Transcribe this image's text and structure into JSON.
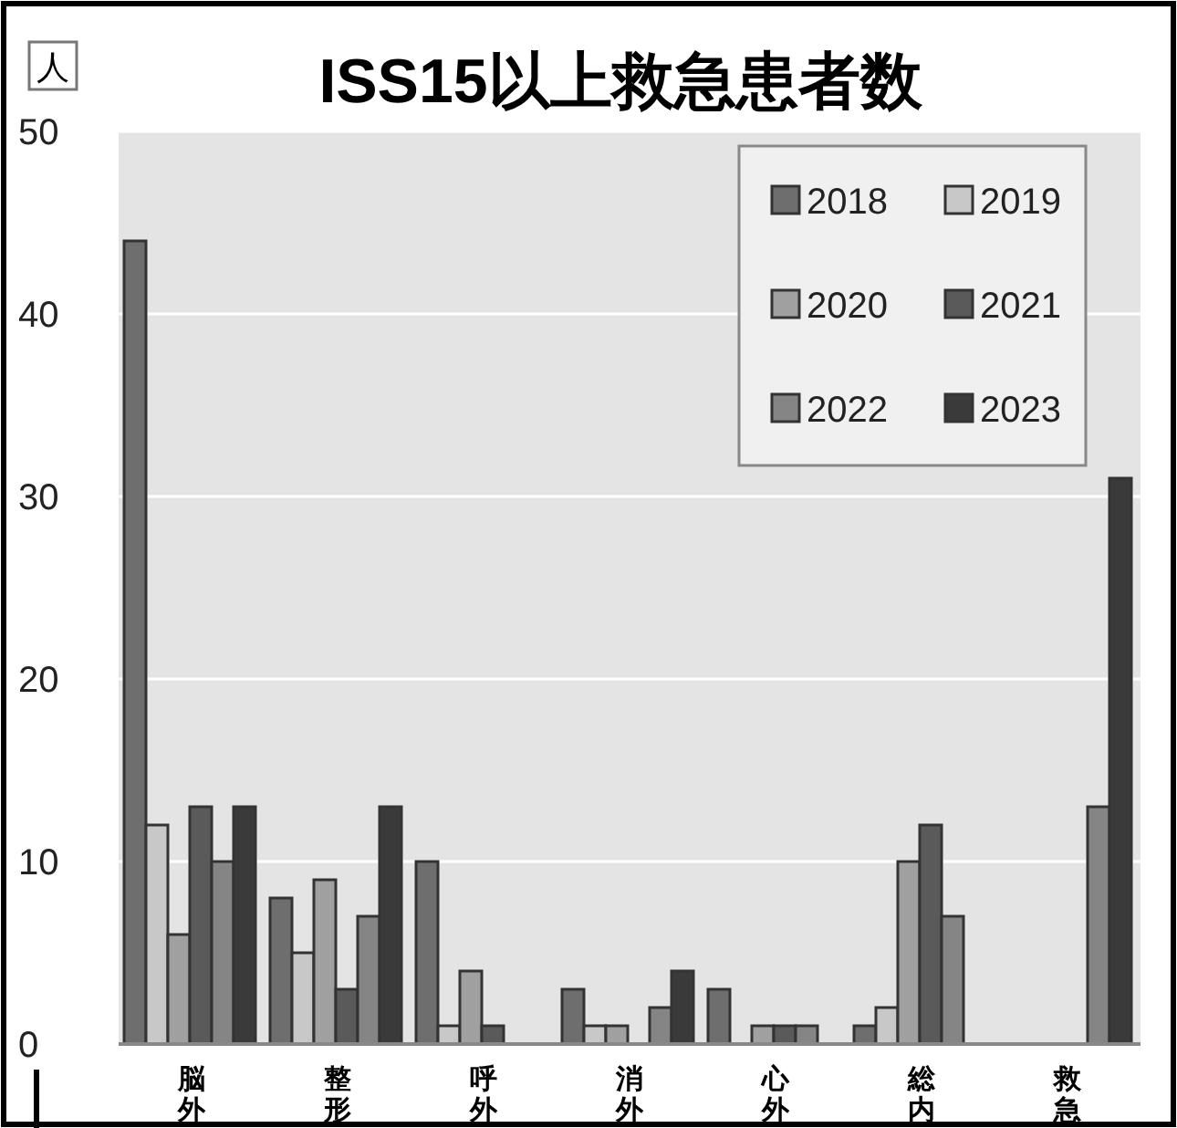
{
  "chart_data": {
    "type": "bar",
    "title": "ISS15以上救急患者数",
    "ylabel": "人",
    "categories": [
      "脳外",
      "整形",
      "呼外",
      "消外",
      "心外",
      "総内",
      "救急"
    ],
    "series": [
      {
        "name": "2018",
        "color": "#6e6e6e",
        "values": [
          44,
          8,
          10,
          3,
          3,
          1,
          0
        ]
      },
      {
        "name": "2019",
        "color": "#c8c8c8",
        "values": [
          12,
          5,
          1,
          1,
          0,
          2,
          0
        ]
      },
      {
        "name": "2020",
        "color": "#a0a0a0",
        "values": [
          6,
          9,
          4,
          1,
          1,
          10,
          0
        ]
      },
      {
        "name": "2021",
        "color": "#5a5a5a",
        "values": [
          13,
          3,
          1,
          0,
          1,
          12,
          0
        ]
      },
      {
        "name": "2022",
        "color": "#858585",
        "values": [
          10,
          7,
          0,
          2,
          1,
          7,
          13
        ]
      },
      {
        "name": "2023",
        "color": "#3a3a3a",
        "values": [
          13,
          13,
          0,
          4,
          0,
          0,
          31
        ]
      }
    ],
    "ylim": [
      0,
      50
    ],
    "yticks": [
      0,
      10,
      20,
      30,
      40,
      50
    ],
    "grid": "y",
    "legend": "top right"
  }
}
